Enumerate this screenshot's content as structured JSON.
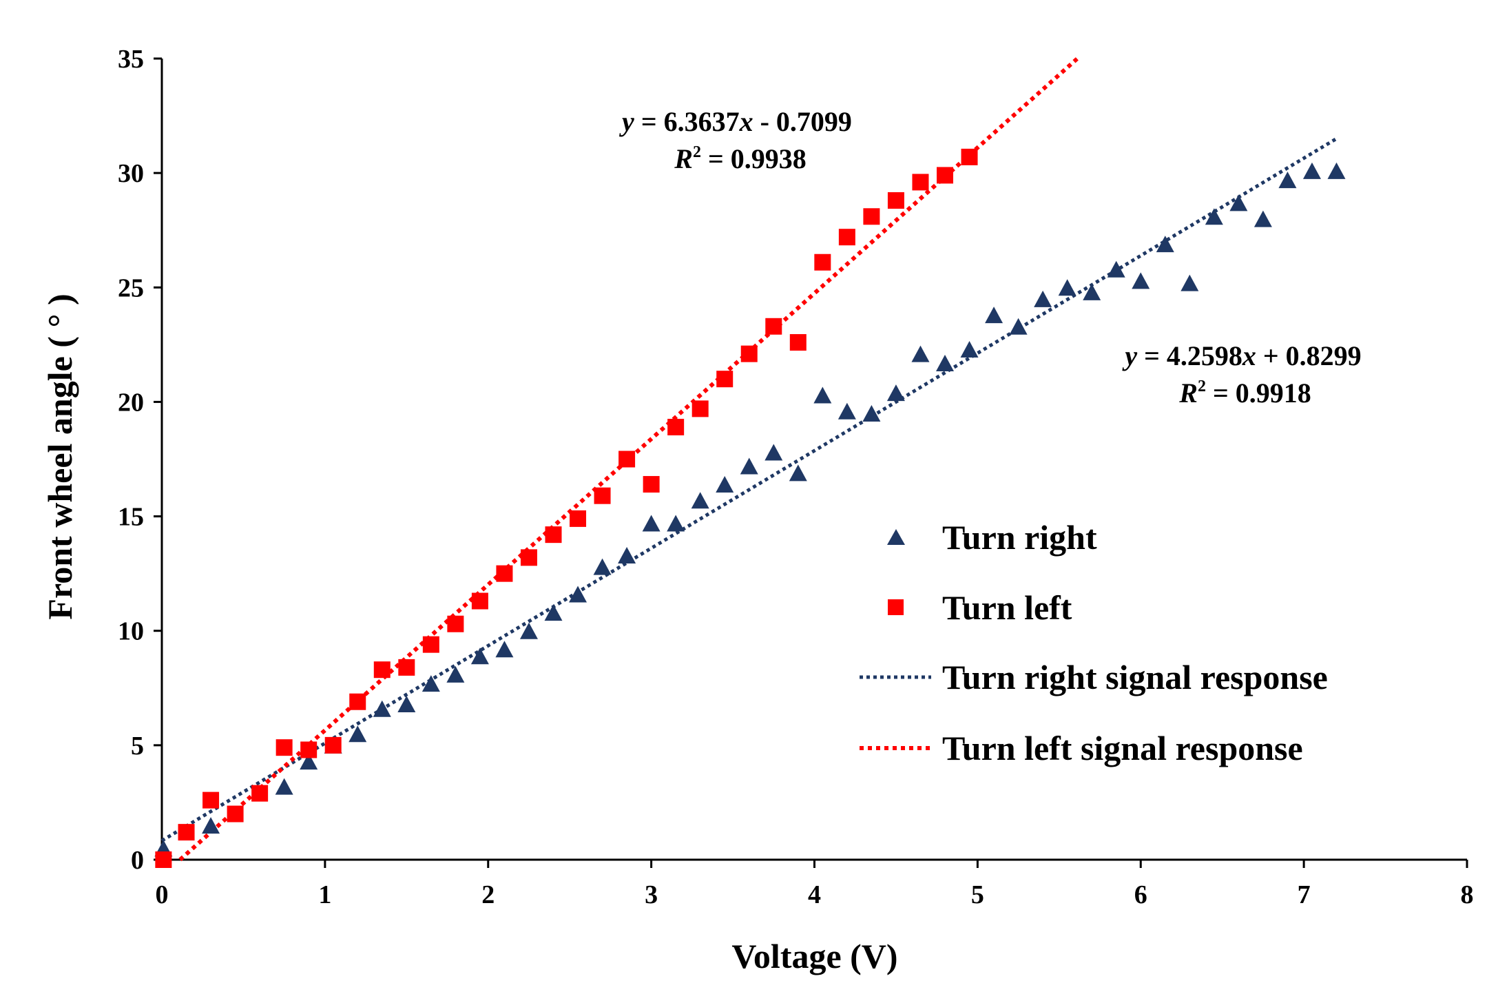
{
  "chart_data": {
    "type": "scatter",
    "title": "",
    "xlabel": "Voltage (V)",
    "ylabel": "Front wheel angle ( ° )",
    "xlim": [
      0,
      8
    ],
    "ylim": [
      0,
      35
    ],
    "xticks": [
      0,
      1,
      2,
      3,
      4,
      5,
      6,
      7,
      8
    ],
    "yticks": [
      0,
      5,
      10,
      15,
      20,
      25,
      30,
      35
    ],
    "grid": false,
    "legend_position": "right-center",
    "series": [
      {
        "name": "Turn right",
        "marker": "triangle",
        "color": "#1f3864",
        "x": [
          0.01,
          0.3,
          0.75,
          0.9,
          1.05,
          1.2,
          1.35,
          1.5,
          1.65,
          1.8,
          1.95,
          2.1,
          2.25,
          2.4,
          2.55,
          2.7,
          2.85,
          3.0,
          3.15,
          3.3,
          3.45,
          3.6,
          3.75,
          3.9,
          4.05,
          4.2,
          4.35,
          4.5,
          4.65,
          4.8,
          4.95,
          5.1,
          5.25,
          5.4,
          5.55,
          5.7,
          5.85,
          6.0,
          6.15,
          6.3,
          6.45,
          6.6,
          6.75,
          6.9,
          7.05,
          7.2
        ],
        "y": [
          0.5,
          1.5,
          3.2,
          4.3,
          5.0,
          5.5,
          6.6,
          6.8,
          7.7,
          8.1,
          8.9,
          9.2,
          10.0,
          10.8,
          11.6,
          12.8,
          13.3,
          14.7,
          14.7,
          15.7,
          16.4,
          17.2,
          17.8,
          16.9,
          20.3,
          19.6,
          19.5,
          20.4,
          22.1,
          21.7,
          22.3,
          23.8,
          23.3,
          24.5,
          25.0,
          24.8,
          25.8,
          25.3,
          26.9,
          25.2,
          28.1,
          28.7,
          28.0,
          29.7,
          30.1,
          30.1
        ]
      },
      {
        "name": "Turn left",
        "marker": "square",
        "color": "#ff0000",
        "x": [
          0.01,
          0.15,
          0.3,
          0.45,
          0.6,
          0.75,
          0.9,
          1.05,
          1.2,
          1.35,
          1.5,
          1.65,
          1.8,
          1.95,
          2.1,
          2.25,
          2.4,
          2.55,
          2.7,
          2.85,
          3.0,
          3.15,
          3.3,
          3.45,
          3.6,
          3.75,
          3.9,
          4.05,
          4.2,
          4.35,
          4.5,
          4.65,
          4.8,
          4.95
        ],
        "y": [
          0.0,
          1.2,
          2.6,
          2.0,
          2.9,
          4.9,
          4.8,
          5.0,
          6.9,
          8.3,
          8.4,
          9.4,
          10.3,
          11.3,
          12.5,
          13.2,
          14.2,
          14.9,
          15.9,
          17.5,
          16.4,
          18.9,
          19.7,
          21.0,
          22.1,
          23.3,
          22.6,
          26.1,
          27.2,
          28.1,
          28.8,
          29.6,
          29.9,
          30.7
        ]
      }
    ],
    "trendlines": [
      {
        "name": "Turn right signal response",
        "color": "#1f3864",
        "slope": 4.2598,
        "intercept": 0.8299,
        "x_range": [
          0,
          7.2
        ],
        "equation": "y = 4.2598x + 0.8299",
        "r_squared": "R² = 0.9918"
      },
      {
        "name": "Turn left signal response",
        "color": "#ff0000",
        "slope": 6.3637,
        "intercept": -0.7099,
        "x_range": [
          0.11,
          5.61
        ],
        "equation": "y = 6.3637x - 0.7099",
        "r_squared": "R² = 0.9938"
      }
    ],
    "annotations": {
      "left_eq": {
        "prefix": "y",
        "mid": " = 6.3637",
        "var": "x",
        "suffix": " - 0.7099",
        "r_label": "R",
        "r_sup": "2",
        "r_value": " = 0.9938"
      },
      "right_eq": {
        "prefix": "y",
        "mid": " = 4.2598",
        "var": "x",
        "suffix": " + 0.8299",
        "r_label": "R",
        "r_sup": "2",
        "r_value": " = 0.9918"
      }
    }
  }
}
